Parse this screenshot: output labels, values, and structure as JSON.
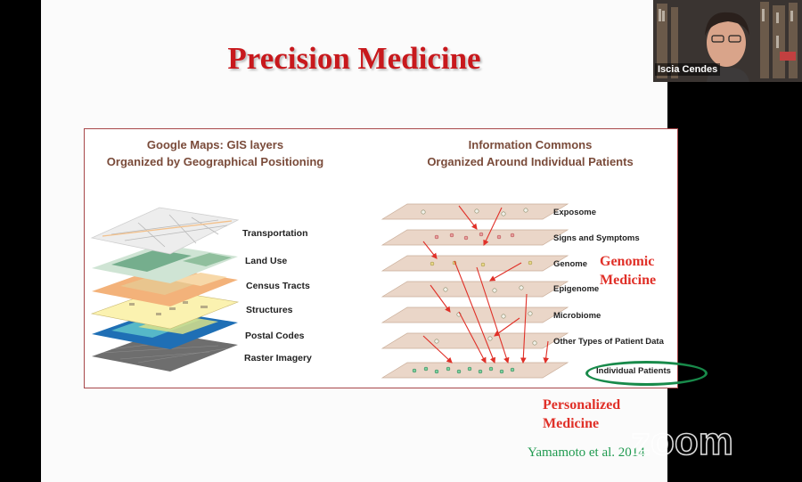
{
  "slide": {
    "title": "Precision Medicine",
    "left_heading_line1": "Google Maps:  GIS layers",
    "left_heading_line2": "Organized by Geographical Positioning",
    "right_heading_line1": "Information Commons",
    "right_heading_line2": "Organized Around Individual Patients",
    "gis_layers": [
      "Transportation",
      "Land Use",
      "Census Tracts",
      "Structures",
      "Postal Codes",
      "Raster Imagery"
    ],
    "info_layers": [
      "Exposome",
      "Signs and Symptoms",
      "Genome",
      "Epigenome",
      "Microbiome",
      "Other Types of Patient Data",
      "Individual Patients"
    ],
    "genomic_line1": "Genomic",
    "genomic_line2": "Medicine",
    "personalized_line1": "Personalized",
    "personalized_line2": "Medicine",
    "citation": "Yamamoto et al. 2014"
  },
  "video": {
    "participant_name": "Iscia Cendes",
    "watermark": "zoom"
  },
  "colors": {
    "title_red": "#c8191d",
    "frame_border": "#a8474a",
    "heading_brown": "#7a4b3a",
    "arrow_red": "#e03028",
    "oval_green": "#188a4a",
    "citation_green": "#1f9a4f",
    "sheet_fill": "#ead6c8"
  }
}
